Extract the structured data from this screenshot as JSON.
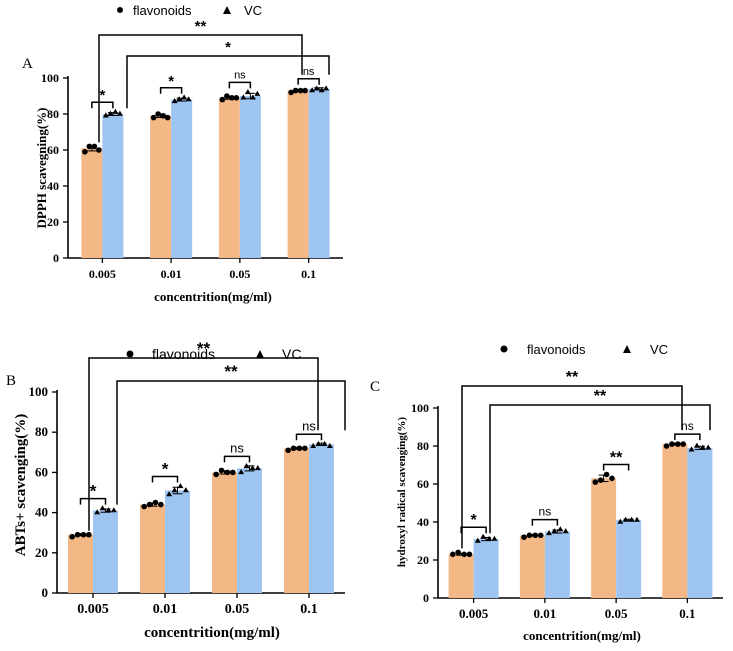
{
  "colors": {
    "flavonoids": "#F4B886",
    "vc": "#9EC5F2",
    "axis": "#000000"
  },
  "legend": {
    "flavonoids": "flavonoids",
    "vc": "VC"
  },
  "chart_data": [
    {
      "panel": "A",
      "type": "bar",
      "ylabel": "DPPH scavegning(%)",
      "xlabel": "concentrition(mg/ml)",
      "ylim": [
        0,
        100
      ],
      "yticks": [
        "0",
        "20",
        "40",
        "60",
        "80",
        "100"
      ],
      "categories": [
        "0.005",
        "0.01",
        "0.05",
        "0.1"
      ],
      "series": [
        {
          "name": "flavonoids",
          "values": [
            61,
            79,
            89,
            93
          ],
          "points": [
            [
              59,
              62,
              62,
              60
            ],
            [
              78,
              80,
              79,
              78
            ],
            [
              88,
              90,
              89,
              89
            ],
            [
              92,
              93,
              93,
              93
            ]
          ]
        },
        {
          "name": "VC",
          "values": [
            80,
            88,
            90,
            94
          ],
          "points": [
            [
              79,
              80,
              81,
              80
            ],
            [
              87,
              88,
              89,
              88
            ],
            [
              89,
              92,
              89,
              91
            ],
            [
              93,
              94,
              93,
              94
            ]
          ]
        }
      ],
      "within": [
        "*",
        "*",
        "ns",
        "ns"
      ],
      "across": [
        {
          "from": 0,
          "to": 3,
          "label": "**"
        },
        {
          "from": 0,
          "to": 3,
          "label": "*"
        }
      ]
    },
    {
      "panel": "B",
      "type": "bar",
      "ylabel": "ABTs+ scavenging(%)",
      "xlabel": "concentrition(mg/ml)",
      "ylim": [
        0,
        100
      ],
      "yticks": [
        "0",
        "20",
        "40",
        "60",
        "80",
        "100"
      ],
      "categories": [
        "0.005",
        "0.01",
        "0.05",
        "0.1"
      ],
      "series": [
        {
          "name": "flavonoids",
          "values": [
            29,
            44,
            60,
            72
          ],
          "points": [
            [
              28,
              29,
              29,
              29
            ],
            [
              43,
              44,
              45,
              44
            ],
            [
              59,
              61,
              60,
              60
            ],
            [
              71,
              72,
              72,
              72
            ]
          ]
        },
        {
          "name": "VC",
          "values": [
            41,
            51,
            62,
            74
          ],
          "points": [
            [
              40,
              42,
              41,
              41
            ],
            [
              49,
              51,
              53,
              51
            ],
            [
              60,
              63,
              62,
              62
            ],
            [
              73,
              74,
              74,
              73
            ]
          ]
        }
      ],
      "within": [
        "*",
        "*",
        "ns",
        "ns"
      ],
      "across": [
        {
          "from": 0,
          "to": 3,
          "label": "**"
        },
        {
          "from": 0,
          "to": 3,
          "label": "**"
        }
      ]
    },
    {
      "panel": "C",
      "type": "bar",
      "ylabel": "hydroxyl radical scavenging(%)",
      "xlabel": "concentrition(mg/ml)",
      "ylim": [
        0,
        100
      ],
      "yticks": [
        "0",
        "20",
        "40",
        "60",
        "80",
        "100"
      ],
      "categories": [
        "0.005",
        "0.01",
        "0.05",
        "0.1"
      ],
      "series": [
        {
          "name": "flavonoids",
          "values": [
            23,
            33,
            63,
            81
          ],
          "points": [
            [
              23,
              24,
              23,
              23
            ],
            [
              32,
              33,
              33,
              33
            ],
            [
              61,
              62,
              65,
              63
            ],
            [
              80,
              81,
              81,
              81
            ]
          ]
        },
        {
          "name": "VC",
          "values": [
            31,
            35,
            41,
            79
          ],
          "points": [
            [
              30,
              32,
              31,
              31
            ],
            [
              34,
              35,
              36,
              35
            ],
            [
              40,
              41,
              41,
              41
            ],
            [
              78,
              80,
              79,
              79
            ]
          ]
        }
      ],
      "within": [
        "*",
        "ns",
        "**",
        "ns"
      ],
      "across": [
        {
          "from": 0,
          "to": 3,
          "label": "**"
        },
        {
          "from": 0,
          "to": 3,
          "label": "**"
        }
      ]
    }
  ]
}
